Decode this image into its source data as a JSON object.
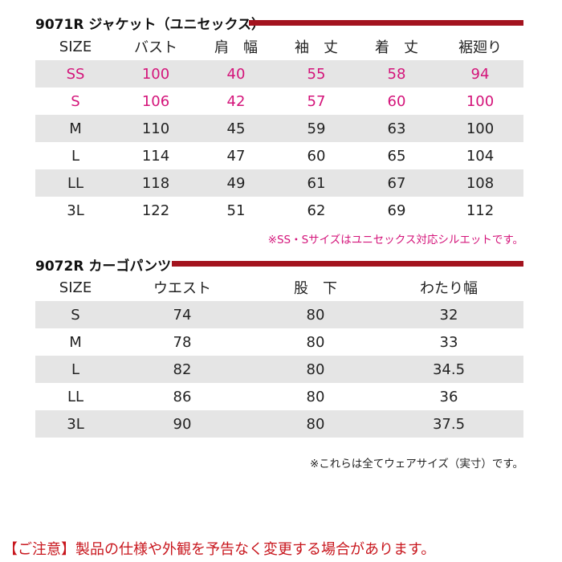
{
  "jacket": {
    "title": "9071R ジャケット（ユニセックス）",
    "headers": [
      "SIZE",
      "バスト",
      "肩　幅",
      "袖　丈",
      "着　丈",
      "裾廻り"
    ],
    "rows": [
      [
        "SS",
        "100",
        "40",
        "55",
        "58",
        "94"
      ],
      [
        "S",
        "106",
        "42",
        "57",
        "60",
        "100"
      ],
      [
        "M",
        "110",
        "45",
        "59",
        "63",
        "100"
      ],
      [
        "L",
        "114",
        "47",
        "60",
        "65",
        "104"
      ],
      [
        "LL",
        "118",
        "49",
        "61",
        "67",
        "108"
      ],
      [
        "3L",
        "122",
        "51",
        "62",
        "69",
        "112"
      ]
    ],
    "note": "※SS・Sサイズはユニセックス対応シルエットです。"
  },
  "pants": {
    "title": "9072R カーゴパンツ",
    "headers": [
      "SIZE",
      "ウエスト",
      "股　下",
      "わたり幅"
    ],
    "rows": [
      [
        "S",
        "74",
        "80",
        "32"
      ],
      [
        "M",
        "78",
        "80",
        "33"
      ],
      [
        "L",
        "82",
        "80",
        "34.5"
      ],
      [
        "LL",
        "86",
        "80",
        "36"
      ],
      [
        "3L",
        "90",
        "80",
        "37.5"
      ]
    ]
  },
  "footnote": "※これらは全てウェアサイズ（実寸）です。",
  "caution": "【ご注意】製品の仕様や外観を予告なく変更する場合があります。",
  "colors": {
    "accent_bar": "#a3131e",
    "highlight_text": "#d4147a",
    "shade_row": "#e5e5e5",
    "caution_text": "#c8161d"
  }
}
